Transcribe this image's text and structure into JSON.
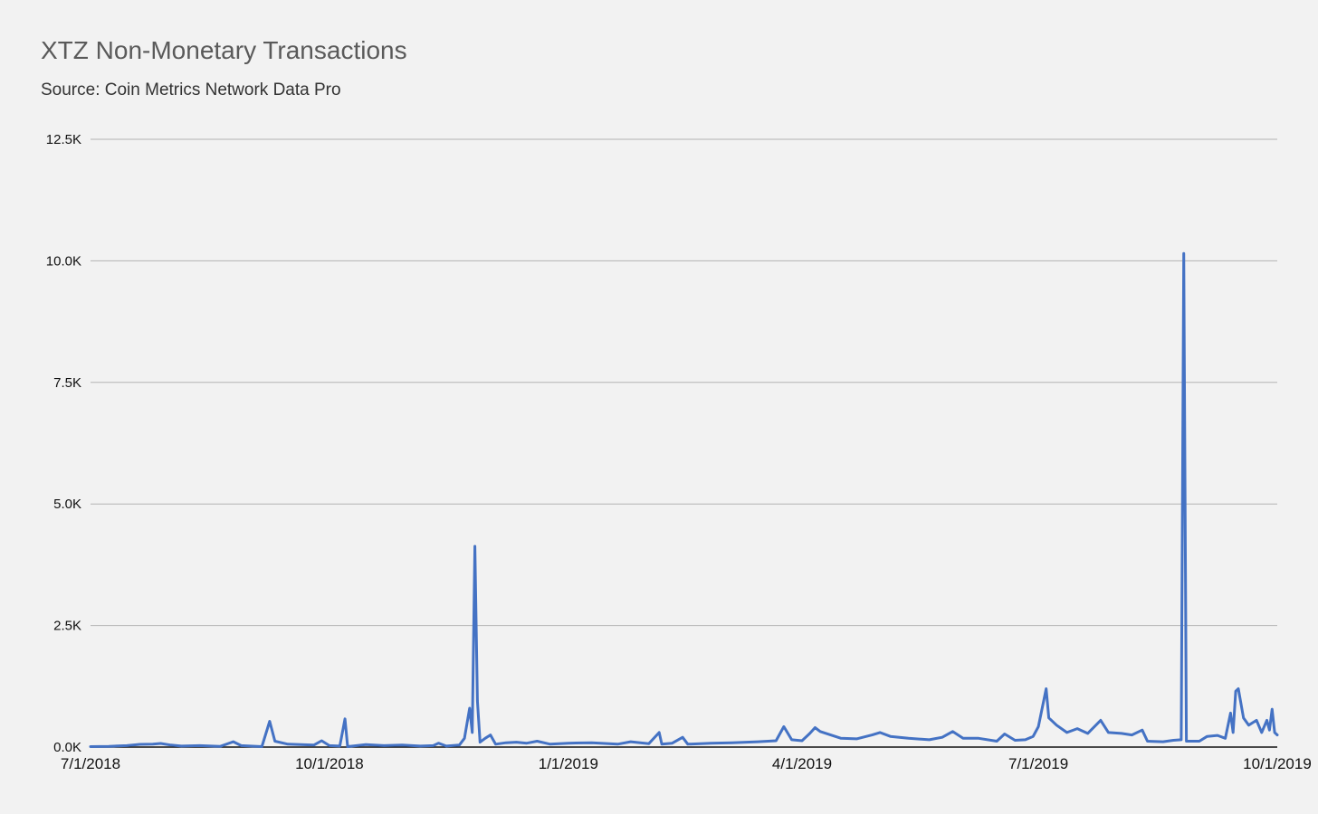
{
  "chart_data": {
    "type": "line",
    "title": "XTZ Non-Monetary Transactions",
    "subtitle": "Source: Coin Metrics Network Data Pro",
    "xlabel": "",
    "ylabel": "",
    "x_range": [
      "2018-07-01",
      "2019-10-01"
    ],
    "ylim": [
      0,
      12500
    ],
    "y_ticks": [
      0,
      2500,
      5000,
      7500,
      10000,
      12500
    ],
    "y_tick_labels": [
      "0.0K",
      "2.5K",
      "5.0K",
      "7.5K",
      "10.0K",
      "12.5K"
    ],
    "x_ticks": [
      "2018-07-01",
      "2018-10-01",
      "2019-01-01",
      "2019-04-01",
      "2019-07-01",
      "2019-10-01"
    ],
    "x_tick_labels": [
      "7/1/2018",
      "10/1/2018",
      "1/1/2019",
      "4/1/2019",
      "7/1/2019",
      "10/1/2019"
    ],
    "grid": "horizontal",
    "legend": "none",
    "series": [
      {
        "color": "#4472c4",
        "points": [
          [
            "2018-07-01",
            10
          ],
          [
            "2018-07-08",
            15
          ],
          [
            "2018-07-15",
            30
          ],
          [
            "2018-07-20",
            55
          ],
          [
            "2018-07-25",
            60
          ],
          [
            "2018-07-28",
            75
          ],
          [
            "2018-08-01",
            40
          ],
          [
            "2018-08-05",
            20
          ],
          [
            "2018-08-12",
            30
          ],
          [
            "2018-08-20",
            15
          ],
          [
            "2018-08-25",
            110
          ],
          [
            "2018-08-28",
            30
          ],
          [
            "2018-09-05",
            10
          ],
          [
            "2018-09-08",
            530
          ],
          [
            "2018-09-10",
            120
          ],
          [
            "2018-09-15",
            60
          ],
          [
            "2018-09-20",
            50
          ],
          [
            "2018-09-25",
            40
          ],
          [
            "2018-09-28",
            130
          ],
          [
            "2018-10-01",
            30
          ],
          [
            "2018-10-05",
            20
          ],
          [
            "2018-10-07",
            580
          ],
          [
            "2018-10-08",
            10
          ],
          [
            "2018-10-15",
            50
          ],
          [
            "2018-10-22",
            30
          ],
          [
            "2018-10-29",
            40
          ],
          [
            "2018-11-05",
            20
          ],
          [
            "2018-11-10",
            30
          ],
          [
            "2018-11-12",
            80
          ],
          [
            "2018-11-15",
            20
          ],
          [
            "2018-11-20",
            40
          ],
          [
            "2018-11-22",
            180
          ],
          [
            "2018-11-24",
            800
          ],
          [
            "2018-11-25",
            300
          ],
          [
            "2018-11-26",
            4130
          ],
          [
            "2018-11-27",
            950
          ],
          [
            "2018-11-28",
            100
          ],
          [
            "2018-11-30",
            180
          ],
          [
            "2018-12-02",
            250
          ],
          [
            "2018-12-04",
            60
          ],
          [
            "2018-12-08",
            90
          ],
          [
            "2018-12-12",
            100
          ],
          [
            "2018-12-16",
            80
          ],
          [
            "2018-12-20",
            120
          ],
          [
            "2018-12-25",
            60
          ],
          [
            "2019-01-01",
            80
          ],
          [
            "2019-01-10",
            90
          ],
          [
            "2019-01-20",
            60
          ],
          [
            "2019-01-25",
            110
          ],
          [
            "2019-02-01",
            70
          ],
          [
            "2019-02-05",
            300
          ],
          [
            "2019-02-06",
            60
          ],
          [
            "2019-02-10",
            80
          ],
          [
            "2019-02-14",
            200
          ],
          [
            "2019-02-16",
            60
          ],
          [
            "2019-02-25",
            80
          ],
          [
            "2019-03-05",
            90
          ],
          [
            "2019-03-15",
            110
          ],
          [
            "2019-03-22",
            130
          ],
          [
            "2019-03-25",
            420
          ],
          [
            "2019-03-28",
            150
          ],
          [
            "2019-04-01",
            130
          ],
          [
            "2019-04-04",
            280
          ],
          [
            "2019-04-06",
            400
          ],
          [
            "2019-04-08",
            320
          ],
          [
            "2019-04-12",
            250
          ],
          [
            "2019-04-16",
            180
          ],
          [
            "2019-04-22",
            170
          ],
          [
            "2019-04-28",
            250
          ],
          [
            "2019-05-01",
            300
          ],
          [
            "2019-05-05",
            220
          ],
          [
            "2019-05-12",
            180
          ],
          [
            "2019-05-20",
            150
          ],
          [
            "2019-05-25",
            200
          ],
          [
            "2019-05-29",
            320
          ],
          [
            "2019-06-02",
            180
          ],
          [
            "2019-06-08",
            180
          ],
          [
            "2019-06-15",
            120
          ],
          [
            "2019-06-18",
            270
          ],
          [
            "2019-06-22",
            140
          ],
          [
            "2019-06-26",
            150
          ],
          [
            "2019-06-29",
            220
          ],
          [
            "2019-07-01",
            420
          ],
          [
            "2019-07-04",
            1200
          ],
          [
            "2019-07-05",
            600
          ],
          [
            "2019-07-08",
            450
          ],
          [
            "2019-07-12",
            300
          ],
          [
            "2019-07-16",
            380
          ],
          [
            "2019-07-20",
            280
          ],
          [
            "2019-07-25",
            550
          ],
          [
            "2019-07-28",
            300
          ],
          [
            "2019-08-02",
            280
          ],
          [
            "2019-08-06",
            250
          ],
          [
            "2019-08-10",
            350
          ],
          [
            "2019-08-12",
            120
          ],
          [
            "2019-08-18",
            110
          ],
          [
            "2019-08-22",
            140
          ],
          [
            "2019-08-25",
            150
          ],
          [
            "2019-08-26",
            10150
          ],
          [
            "2019-08-27",
            120
          ],
          [
            "2019-09-01",
            120
          ],
          [
            "2019-09-04",
            220
          ],
          [
            "2019-09-08",
            240
          ],
          [
            "2019-09-11",
            180
          ],
          [
            "2019-09-13",
            700
          ],
          [
            "2019-09-14",
            300
          ],
          [
            "2019-09-15",
            1150
          ],
          [
            "2019-09-16",
            1200
          ],
          [
            "2019-09-18",
            600
          ],
          [
            "2019-09-20",
            450
          ],
          [
            "2019-09-23",
            550
          ],
          [
            "2019-09-25",
            300
          ],
          [
            "2019-09-27",
            550
          ],
          [
            "2019-09-28",
            350
          ],
          [
            "2019-09-29",
            780
          ],
          [
            "2019-09-30",
            300
          ],
          [
            "2019-10-01",
            250
          ]
        ]
      }
    ]
  }
}
